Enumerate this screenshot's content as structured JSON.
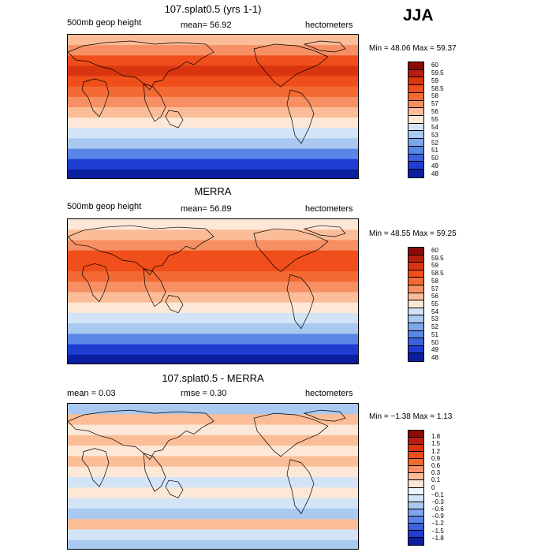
{
  "season_label": "JJA",
  "panels": [
    {
      "title": "107.splat0.5 (yrs 1-1)",
      "left_label": "500mb geop height",
      "center_label": "mean=   56.92",
      "right_label": "hectometers",
      "minmax": "Min =  48.06  Max =  59.37",
      "colorbar_labels": [
        "60",
        "59.5",
        "59",
        "58.5",
        "58",
        "57",
        "56",
        "55",
        "54",
        "53",
        "52",
        "51",
        "50",
        "49",
        "48"
      ],
      "colorbar_colors": [
        "#8c0a0a",
        "#b81e0d",
        "#d93510",
        "#f04e1a",
        "#f26a32",
        "#f69064",
        "#fbbd97",
        "#fde8d8",
        "#d2e4f6",
        "#a9c9f0",
        "#7ea6ea",
        "#5a86e7",
        "#3c62e0",
        "#1e3ed2",
        "#0a1ea0"
      ],
      "band_colors": [
        "#fbbd97",
        "#f69064",
        "#f04e1a",
        "#d93510",
        "#f04e1a",
        "#f26a32",
        "#f69064",
        "#fbbd97",
        "#fde8d8",
        "#d2e4f6",
        "#a9c9f0",
        "#5a86e7",
        "#1e3ed2",
        "#0a1ea0"
      ]
    },
    {
      "title": "MERRA",
      "left_label": "500mb geop height",
      "center_label": "mean=   56.89",
      "right_label": "hectometers",
      "minmax": "Min =  48.55  Max =  59.25",
      "colorbar_labels": [
        "60",
        "59.5",
        "59",
        "58.5",
        "58",
        "57",
        "56",
        "55",
        "54",
        "53",
        "52",
        "51",
        "50",
        "49",
        "48"
      ],
      "colorbar_colors": [
        "#8c0a0a",
        "#b81e0d",
        "#d93510",
        "#f04e1a",
        "#f26a32",
        "#f69064",
        "#fbbd97",
        "#fde8d8",
        "#d2e4f6",
        "#a9c9f0",
        "#7ea6ea",
        "#5a86e7",
        "#3c62e0",
        "#1e3ed2",
        "#0a1ea0"
      ],
      "band_colors": [
        "#fde8d8",
        "#fbbd97",
        "#f69064",
        "#f04e1a",
        "#f04e1a",
        "#f26a32",
        "#f69064",
        "#fbbd97",
        "#fde8d8",
        "#d2e4f6",
        "#a9c9f0",
        "#5a86e7",
        "#1e3ed2",
        "#0a1ea0"
      ]
    },
    {
      "title": "107.splat0.5 - MERRA",
      "left_label": "mean =    0.03",
      "center_label": "rmse =    0.30",
      "right_label": "hectometers",
      "minmax": "Min =  −1.38  Max =    1.13",
      "colorbar_labels": [
        "1.8",
        "1.5",
        "1.2",
        "0.9",
        "0.6",
        "0.3",
        "0.1",
        "0",
        "−0.1",
        "−0.3",
        "−0.6",
        "−0.9",
        "−1.2",
        "−1.5",
        "−1.8"
      ],
      "colorbar_colors": [
        "#8c0a0a",
        "#b81e0d",
        "#d93510",
        "#f04e1a",
        "#f26a32",
        "#f69064",
        "#fbbd97",
        "#fde8d8",
        "#eef4fb",
        "#d2e4f6",
        "#a9c9f0",
        "#7ea6ea",
        "#5a86e7",
        "#3c62e0",
        "#1e3ed2",
        "#0a1ea0"
      ],
      "band_colors": [
        "#a9c9f0",
        "#fbbd97",
        "#fde8d8",
        "#fbbd97",
        "#fde8d8",
        "#fbbd97",
        "#fde8d8",
        "#d2e4f6",
        "#fde8d8",
        "#d2e4f6",
        "#a9c9f0",
        "#fbbd97",
        "#d2e4f6",
        "#a9c9f0"
      ]
    }
  ]
}
